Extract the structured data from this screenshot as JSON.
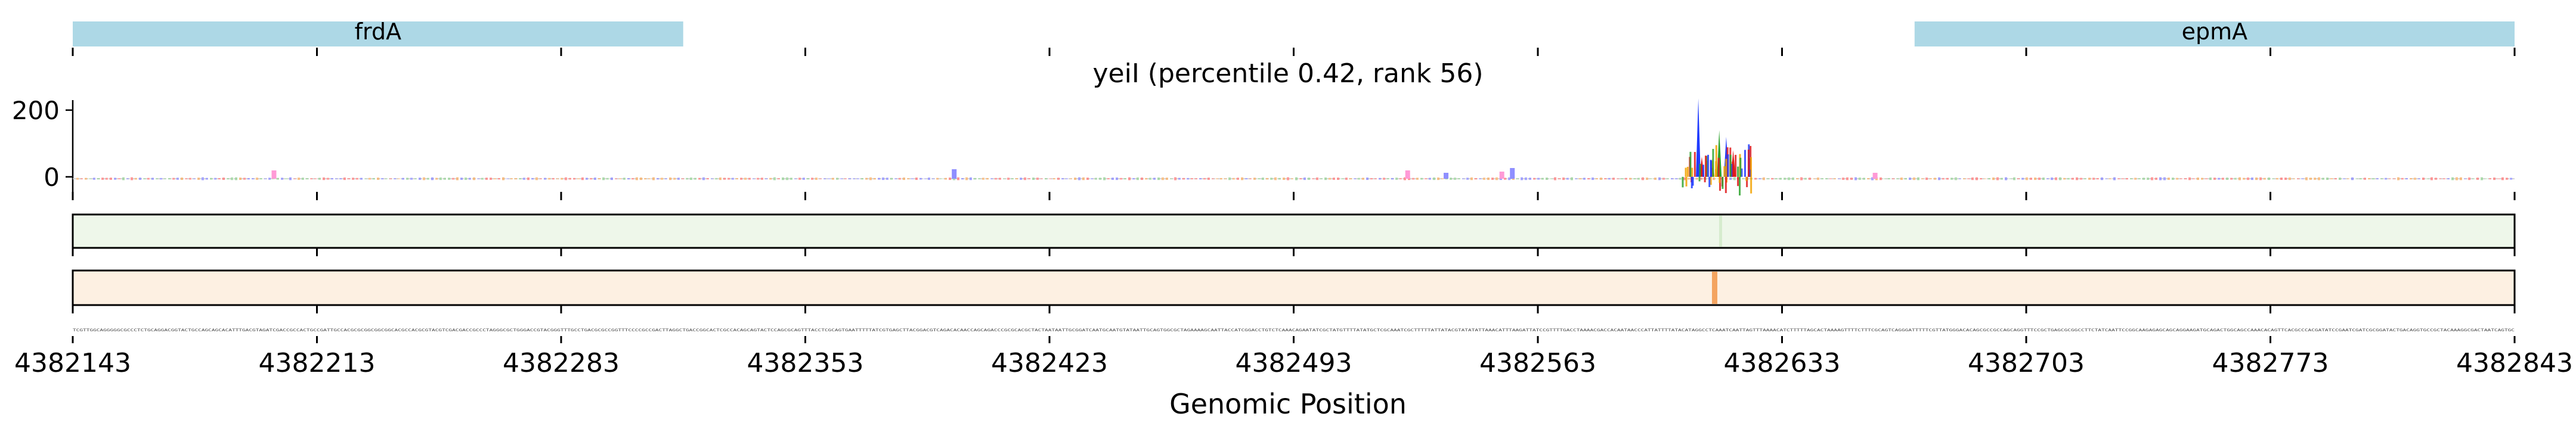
{
  "chart_data": {
    "type": "line",
    "title": "yeiI (percentile 0.42, rank 56)",
    "xlabel": "Genomic Position",
    "ylabel": "",
    "x_ticks": [
      "4382143",
      "4382213",
      "4382283",
      "4382353",
      "4382423",
      "4382493",
      "4382563",
      "4382633",
      "4382703",
      "4382773",
      "4382843"
    ],
    "xlim": [
      4382143,
      4382843
    ],
    "y_ticks": [
      "0",
      "200"
    ],
    "ylim": [
      -45,
      230
    ],
    "genes": [
      {
        "name": "frdA",
        "start": 4382143,
        "end": 4382318,
        "color": "#add8e6"
      },
      {
        "name": "epmA",
        "start": 4382671,
        "end": 4382843,
        "color": "#add8e6"
      }
    ],
    "peak_signal": {
      "x": [
        4382609,
        4382610,
        4382613,
        4382615,
        4382617,
        4382619
      ],
      "y": [
        235,
        60,
        55,
        140,
        120,
        80
      ]
    },
    "track_green_color": "#eef7ea",
    "track_orange_color": "#fdf0e2",
    "orange_highlight": {
      "position": 4382609,
      "color": "#f4a460"
    },
    "sequence": "TCGTTGGCAGGGGGCGCCCTCTGCAGGACGGTACTGCCAGCAGCACATTTGACGTAGATCGACCGCCACTGCCGATTGCCACGCGCGGCGGCGGCACGCCACGCGTACGTCGACGACCGCCCTAGGGCGCTGGGACCGTACGGGTTTGCCTGACGCGCCGGTTTCCCCGCCGACTTAGGCTGACCGGCACTCGCCACAGCAGTACTCCAGCGCAGTTTACCTCGCAGTGAATTTTTATCGTGAGCTTACGGACGTCAGACACAACCAGCAGACCCGCGCACGCTACTAATAATTGCGGATCAATGCAATGTATAATTGCAGTGGCGCTAGAAAAGCAATTACCATCGGACCTGTCTCAAACAGAATATCGCTATGTTTTATATGCTCGCAAATCGCTTTTTATTATACGTATATATTAAACATTTAAGATTATCCGTTTTGACCTAAAACGACCACAATAACCCATTATTTTATACATAGGCCTCAAATCAATTAGTTTAAAACATCTTTTTAGCACTAAAAGTTTTCTTTCGCAGTCAGGGATTTTTCGTTATGGGACACAGCGCCGCCAGCAGGTTTCCGCTGAGCGCGGCCTTCTATCAATTCCGGCAAGAGAGCAGCAGGAAGATGCAGACTGGCAGCCAAACACAGTTCACGCCCACGATATCCGAATCGATCGCGGATACTGACAGGTGCCGCTACAAAGGCGACTAATCAGTGC"
  }
}
